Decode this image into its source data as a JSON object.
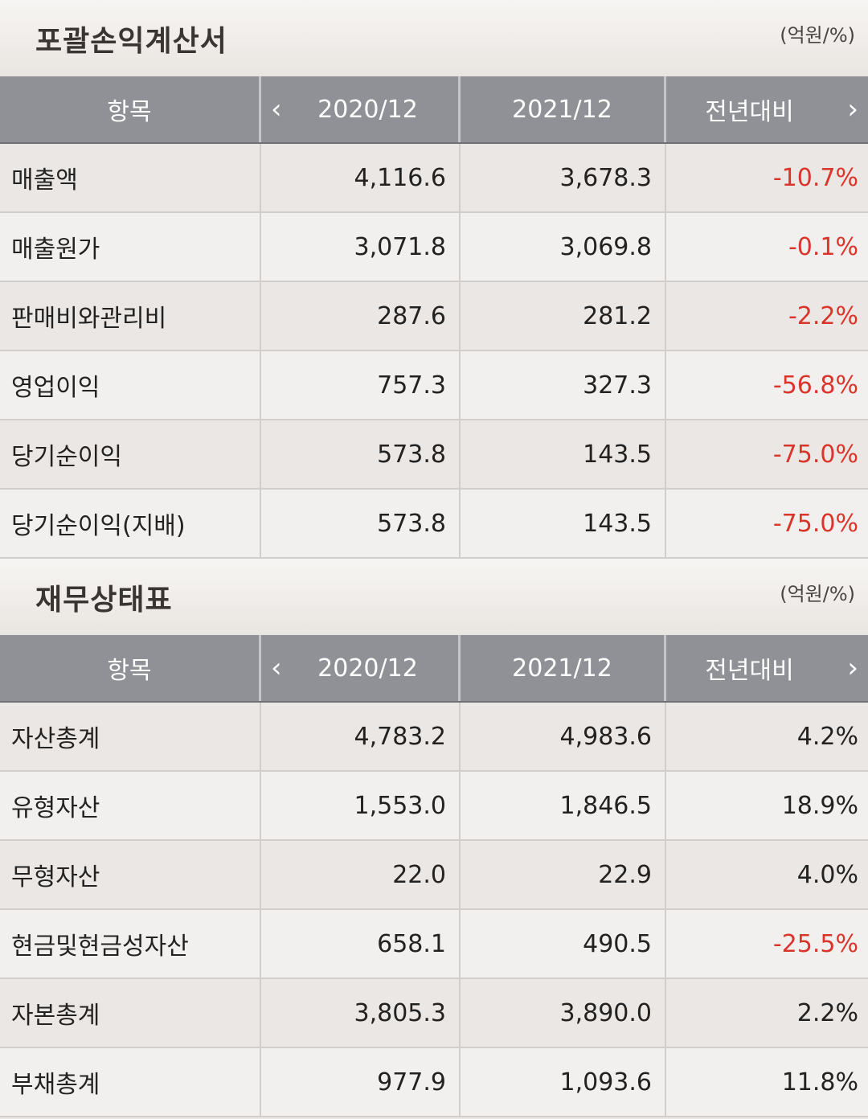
{
  "income": {
    "title": "포괄손익계산서",
    "unit": "(억원/%)",
    "headers": {
      "item": "항목",
      "prev": "2020/12",
      "curr": "2021/12",
      "yoy": "전년대비"
    },
    "rows": [
      {
        "label": "매출액",
        "prev": "4,116.6",
        "curr": "3,678.3",
        "yoy": "-10.7%",
        "neg": true
      },
      {
        "label": "매출원가",
        "prev": "3,071.8",
        "curr": "3,069.8",
        "yoy": "-0.1%",
        "neg": true
      },
      {
        "label": "판매비와관리비",
        "prev": "287.6",
        "curr": "281.2",
        "yoy": "-2.2%",
        "neg": true
      },
      {
        "label": "영업이익",
        "prev": "757.3",
        "curr": "327.3",
        "yoy": "-56.8%",
        "neg": true
      },
      {
        "label": "당기순이익",
        "prev": "573.8",
        "curr": "143.5",
        "yoy": "-75.0%",
        "neg": true
      },
      {
        "label": "당기순이익(지배)",
        "prev": "573.8",
        "curr": "143.5",
        "yoy": "-75.0%",
        "neg": true
      }
    ]
  },
  "balance": {
    "title": "재무상태표",
    "unit": "(억원/%)",
    "headers": {
      "item": "항목",
      "prev": "2020/12",
      "curr": "2021/12",
      "yoy": "전년대비"
    },
    "rows": [
      {
        "label": "자산총계",
        "prev": "4,783.2",
        "curr": "4,983.6",
        "yoy": "4.2%",
        "neg": false
      },
      {
        "label": "유형자산",
        "prev": "1,553.0",
        "curr": "1,846.5",
        "yoy": "18.9%",
        "neg": false
      },
      {
        "label": "무형자산",
        "prev": "22.0",
        "curr": "22.9",
        "yoy": "4.0%",
        "neg": false
      },
      {
        "label": "현금및현금성자산",
        "prev": "658.1",
        "curr": "490.5",
        "yoy": "-25.5%",
        "neg": true
      },
      {
        "label": "자본총계",
        "prev": "3,805.3",
        "curr": "3,890.0",
        "yoy": "2.2%",
        "neg": false
      },
      {
        "label": "부채총계",
        "prev": "977.9",
        "curr": "1,093.6",
        "yoy": "11.8%",
        "neg": false
      }
    ]
  },
  "colors": {
    "negative": "#d9352b",
    "header_bg": "#8f9196"
  },
  "icons": {
    "prev": "chevron-left-icon",
    "next": "chevron-right-icon"
  }
}
